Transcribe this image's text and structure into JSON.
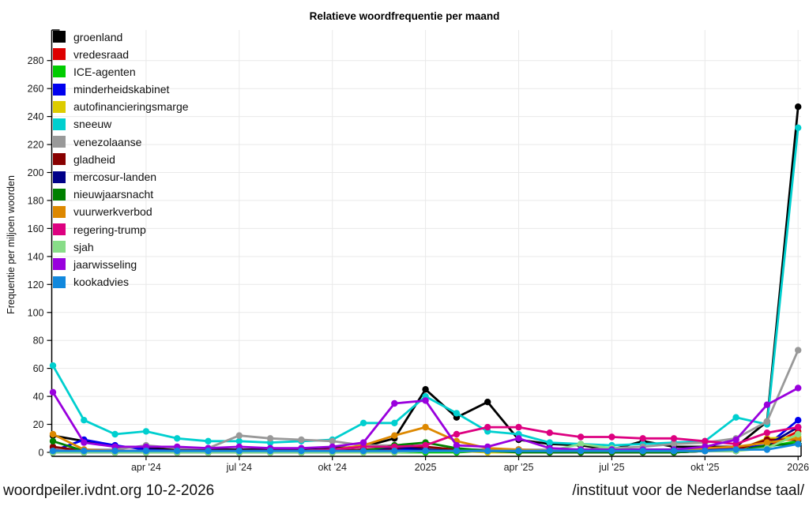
{
  "chart_data": {
    "type": "line",
    "title": "Relatieve woordfrequentie per maand",
    "xlabel": "",
    "ylabel": "Frequentie per miljoen woorden",
    "x_unit": "month",
    "x_range_months": [
      "jan 2024",
      "jan 2026"
    ],
    "n_points": 25,
    "ylim": [
      0,
      292
    ],
    "grid": true,
    "legend_position": "top-left",
    "yticks": [
      0,
      20,
      40,
      60,
      80,
      100,
      120,
      140,
      160,
      180,
      200,
      220,
      240,
      260,
      280
    ],
    "xticks": [
      {
        "i": 3,
        "label": "apr '24"
      },
      {
        "i": 6,
        "label": "jul '24"
      },
      {
        "i": 9,
        "label": "okt '24"
      },
      {
        "i": 12,
        "label": "2025"
      },
      {
        "i": 15,
        "label": "apr '25"
      },
      {
        "i": 18,
        "label": "jul '25"
      },
      {
        "i": 21,
        "label": "okt '25"
      },
      {
        "i": 24,
        "label": "2026"
      }
    ],
    "series": [
      {
        "name": "groenland",
        "color": "#000000",
        "values": [
          12,
          8,
          4,
          3,
          2,
          2,
          2,
          2,
          2,
          3,
          4,
          10,
          45,
          25,
          36,
          9,
          6,
          5,
          2,
          8,
          4,
          4,
          4,
          22,
          247
        ]
      },
      {
        "name": "vredesraad",
        "color": "#dd0000",
        "values": [
          1,
          1,
          1,
          1,
          1,
          1,
          1,
          1,
          1,
          1,
          1,
          2,
          2,
          2,
          2,
          2,
          1,
          1,
          1,
          1,
          1,
          1,
          2,
          4,
          15
        ]
      },
      {
        "name": "ICE-agenten",
        "color": "#00cc00",
        "values": [
          0,
          0,
          0,
          0,
          0,
          0,
          0,
          0,
          0,
          0,
          0,
          0,
          0,
          0,
          1,
          1,
          1,
          1,
          2,
          2,
          2,
          2,
          3,
          4,
          8
        ]
      },
      {
        "name": "minderheidskabinet",
        "color": "#0000ee",
        "values": [
          1,
          9,
          5,
          2,
          1,
          1,
          1,
          1,
          1,
          1,
          2,
          2,
          2,
          2,
          2,
          2,
          1,
          2,
          2,
          2,
          2,
          2,
          3,
          5,
          23
        ]
      },
      {
        "name": "autofinancieringsmarge",
        "color": "#ddcc00",
        "values": [
          0,
          0,
          0,
          0,
          0,
          0,
          0,
          0,
          0,
          0,
          0,
          0,
          1,
          1,
          0,
          0,
          0,
          0,
          0,
          0,
          0,
          1,
          1,
          10,
          11
        ]
      },
      {
        "name": "sneeuw",
        "color": "#00cfcf",
        "values": [
          62,
          23,
          13,
          15,
          10,
          8,
          8,
          7,
          8,
          9,
          21,
          21,
          40,
          28,
          15,
          13,
          7,
          6,
          5,
          6,
          7,
          8,
          25,
          20,
          232
        ]
      },
      {
        "name": "venezolaanse",
        "color": "#999999",
        "values": [
          3,
          2,
          2,
          5,
          3,
          3,
          12,
          10,
          9,
          8,
          5,
          5,
          3,
          2,
          2,
          2,
          2,
          2,
          3,
          4,
          6,
          7,
          10,
          22,
          73
        ]
      },
      {
        "name": "gladheid",
        "color": "#880000",
        "values": [
          4,
          1,
          1,
          1,
          0,
          0,
          0,
          0,
          0,
          1,
          2,
          3,
          4,
          2,
          1,
          1,
          0,
          0,
          0,
          0,
          0,
          1,
          2,
          9,
          9
        ]
      },
      {
        "name": "mercosur-landen",
        "color": "#000088",
        "values": [
          0,
          0,
          0,
          0,
          0,
          0,
          0,
          0,
          0,
          0,
          1,
          4,
          2,
          1,
          1,
          1,
          0,
          0,
          0,
          0,
          0,
          1,
          1,
          5,
          18
        ]
      },
      {
        "name": "nieuwjaarsnacht",
        "color": "#008000",
        "values": [
          8,
          1,
          0,
          0,
          0,
          0,
          0,
          0,
          0,
          0,
          1,
          5,
          7,
          3,
          1,
          0,
          0,
          0,
          0,
          0,
          0,
          1,
          1,
          5,
          6
        ]
      },
      {
        "name": "vuurwerkverbod",
        "color": "#dd8800",
        "values": [
          13,
          2,
          1,
          1,
          1,
          1,
          1,
          1,
          1,
          2,
          5,
          12,
          18,
          8,
          3,
          2,
          1,
          1,
          1,
          1,
          1,
          3,
          4,
          7,
          10
        ]
      },
      {
        "name": "regering-trump",
        "color": "#dd0080",
        "values": [
          1,
          1,
          1,
          1,
          1,
          1,
          1,
          1,
          1,
          2,
          4,
          4,
          5,
          13,
          18,
          18,
          14,
          11,
          11,
          10,
          10,
          8,
          6,
          14,
          18
        ]
      },
      {
        "name": "sjah",
        "color": "#88dd88",
        "values": [
          0,
          0,
          0,
          0,
          0,
          0,
          0,
          0,
          0,
          0,
          0,
          0,
          1,
          1,
          1,
          1,
          1,
          6,
          3,
          1,
          1,
          1,
          1,
          3,
          13
        ]
      },
      {
        "name": "jaarwisseling",
        "color": "#9900dd",
        "values": [
          43,
          7,
          4,
          4,
          4,
          3,
          4,
          3,
          3,
          4,
          7,
          35,
          37,
          5,
          4,
          10,
          3,
          2,
          2,
          2,
          2,
          4,
          9,
          34,
          46
        ]
      },
      {
        "name": "kookadvies",
        "color": "#1188dd",
        "values": [
          1,
          1,
          1,
          1,
          1,
          1,
          1,
          1,
          1,
          1,
          1,
          1,
          1,
          1,
          1,
          1,
          1,
          1,
          1,
          1,
          1,
          1,
          2,
          2,
          6
        ]
      }
    ]
  },
  "footer": {
    "left": "woordpeiler.ivdnt.org 10-2-2026",
    "right": "/instituut voor de Nederlandse taal/"
  }
}
